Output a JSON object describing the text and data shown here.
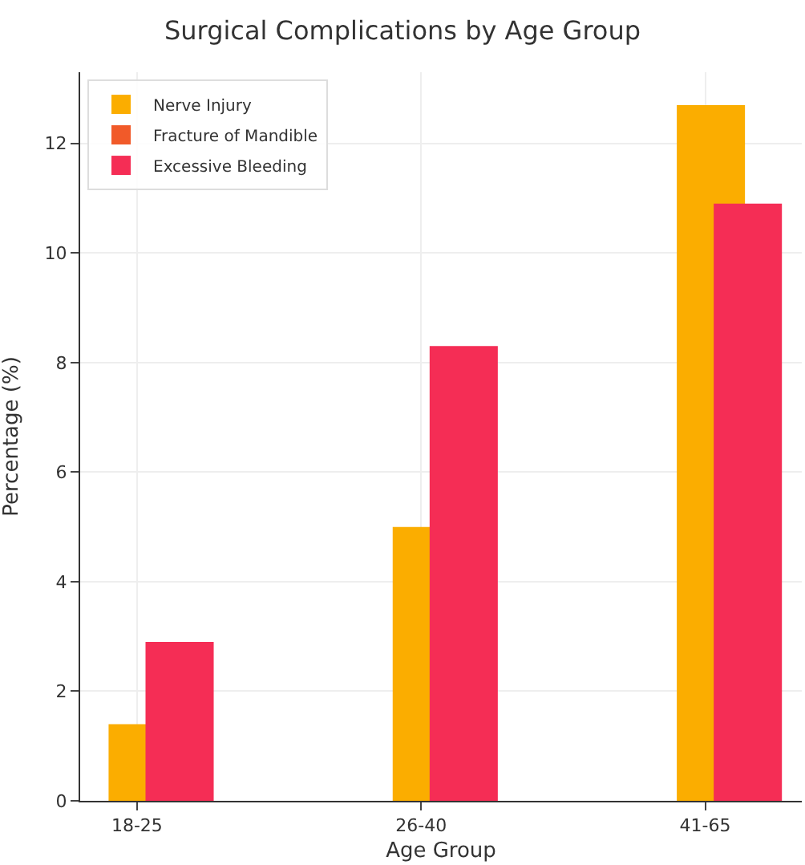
{
  "chart_data": {
    "type": "bar",
    "title": "Surgical Complications by Age Group",
    "xlabel": "Age Group",
    "ylabel": "Percentage (%)",
    "categories": [
      "18-25",
      "26-40",
      "41-65"
    ],
    "series": [
      {
        "name": "Nerve Injury",
        "color": "#fbad00",
        "values": [
          1.4,
          5.0,
          12.7
        ]
      },
      {
        "name": "Fracture of Mandible",
        "color": "#f15a29",
        "values": [
          null,
          null,
          null
        ]
      },
      {
        "name": "Excessive Bleeding",
        "color": "#f52d55",
        "values": [
          2.9,
          8.3,
          10.9
        ]
      }
    ],
    "ylim": [
      0,
      13.3
    ],
    "yticks": [
      0,
      2,
      4,
      6,
      8,
      10,
      12
    ],
    "grid": true,
    "legend": "top left"
  }
}
